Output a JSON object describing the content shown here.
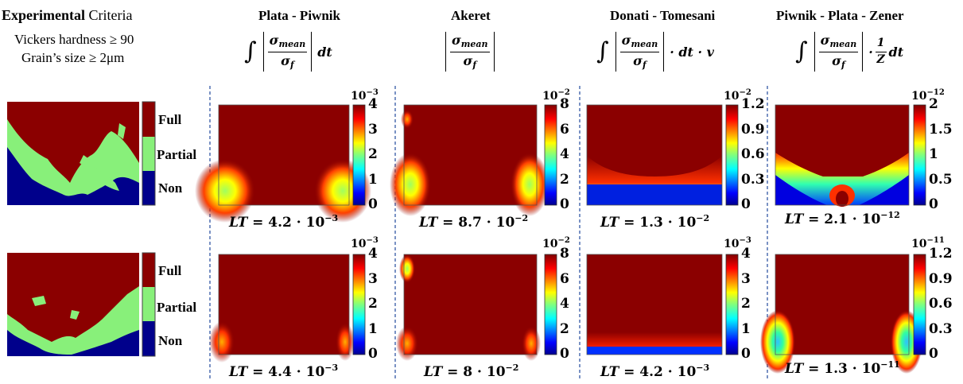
{
  "experimental": {
    "title_bold": "Experimental",
    "title_rest": " Criteria",
    "line1": "Vickers hardness ≥ 90",
    "line2": "Grain’s size ≥ 2μm",
    "categories": [
      "Full",
      "Partial",
      "Non"
    ],
    "colors": {
      "full": "#8b0000",
      "partial": "#88f07a",
      "non": "#00008b"
    }
  },
  "criteria": [
    {
      "title": "Plata - Piwnik",
      "formula": {
        "integral": "∫",
        "num": "σ",
        "num_sub": "mean",
        "den": "σ",
        "den_sub": "f",
        "tail": "dt"
      },
      "maps": [
        {
          "exponent_label": "10",
          "exponent": "−3",
          "ticks": [
            "4",
            "3",
            "2",
            "1",
            "0"
          ],
          "lt_var": "LT",
          "lt_eq": " = 4.2  ·  10",
          "lt_exp": "−3"
        },
        {
          "exponent_label": "10",
          "exponent": "−3",
          "ticks": [
            "4",
            "3",
            "2",
            "1",
            "0"
          ],
          "lt_var": "LT",
          "lt_eq": " = 4.4  ·  10",
          "lt_exp": "−3"
        }
      ]
    },
    {
      "title": "Akeret",
      "formula": {
        "integral": "",
        "num": "σ",
        "num_sub": "mean",
        "den": "σ",
        "den_sub": "f",
        "tail": ""
      },
      "maps": [
        {
          "exponent_label": "10",
          "exponent": "−2",
          "ticks": [
            "8",
            "6",
            "4",
            "2",
            "0"
          ],
          "lt_var": "LT",
          "lt_eq": " = 8.7 ·  10",
          "lt_exp": "−2"
        },
        {
          "exponent_label": "10",
          "exponent": "−2",
          "ticks": [
            "8",
            "6",
            "4",
            "2",
            "0"
          ],
          "lt_var": "LT",
          "lt_eq": " = 8 ·  10",
          "lt_exp": "−2"
        }
      ]
    },
    {
      "title": "Donati - Tomesani",
      "formula": {
        "integral": "∫",
        "num": "σ",
        "num_sub": "mean",
        "den": "σ",
        "den_sub": "f",
        "tail": "· dt · v"
      },
      "maps": [
        {
          "exponent_label": "10",
          "exponent": "−2",
          "ticks": [
            "1.2",
            "0.9",
            "0.6",
            "0.3",
            "0"
          ],
          "lt_var": "LT",
          "lt_eq": " = 1.3 ·  10",
          "lt_exp": "−2"
        },
        {
          "exponent_label": "10",
          "exponent": "−3",
          "ticks": [
            "4",
            "3",
            "2",
            "1",
            "0"
          ],
          "lt_var": "LT",
          "lt_eq": " = 4.2 ·  10",
          "lt_exp": "−3"
        }
      ]
    },
    {
      "title": "Piwnik - Plata - Zener",
      "formula": {
        "integral": "∫",
        "num": "σ",
        "num_sub": "mean",
        "den": "σ",
        "den_sub": "f",
        "tail_pre": "·",
        "tail_num": "1",
        "tail_den": "Z",
        "tail": "dt"
      },
      "maps": [
        {
          "exponent_label": "10",
          "exponent": "−12",
          "ticks": [
            "2",
            "1.5",
            "1",
            "0.5",
            "0"
          ],
          "lt_var": "LT",
          "lt_eq": " = 2.1 ·  10",
          "lt_exp": "−12"
        },
        {
          "exponent_label": "10",
          "exponent": "−11",
          "ticks": [
            "1.2",
            "0.9",
            "0.6",
            "0.3",
            "0"
          ],
          "lt_var": "LT",
          "lt_eq": " = 1.3 ·  10",
          "lt_exp": "−11"
        }
      ]
    }
  ],
  "colors": {
    "background": "#8b0000",
    "divider": "#4f6fb0"
  }
}
